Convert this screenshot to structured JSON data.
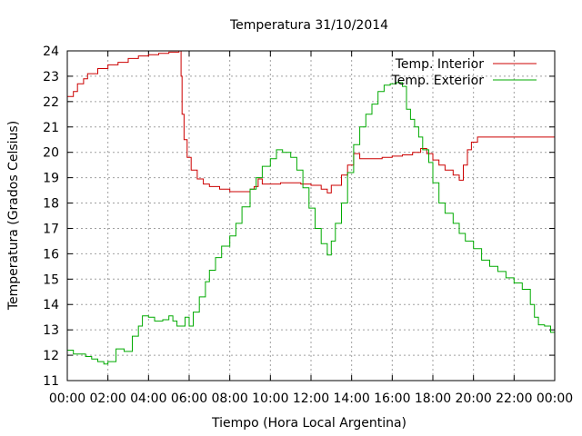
{
  "chart_data": {
    "type": "line",
    "title": "Temperatura 31/10/2014",
    "xlabel": "Tiempo (Hora Local Argentina)",
    "ylabel": "Temperatura (Grados Celsius)",
    "xlim": [
      0,
      24
    ],
    "ylim": [
      11,
      24
    ],
    "x_tick_labels": [
      "00:00",
      "02:00",
      "04:00",
      "06:00",
      "08:00",
      "10:00",
      "12:00",
      "14:00",
      "16:00",
      "18:00",
      "20:00",
      "22:00",
      "00:00"
    ],
    "y_tick_labels": [
      "11",
      "12",
      "13",
      "14",
      "15",
      "16",
      "17",
      "18",
      "19",
      "20",
      "21",
      "22",
      "23",
      "24"
    ],
    "grid": true,
    "legend_position": "top-right",
    "series": [
      {
        "name": "Temp. Interior",
        "color": "#cc0000",
        "points": [
          [
            0.0,
            22.2
          ],
          [
            0.3,
            22.4
          ],
          [
            0.5,
            22.7
          ],
          [
            0.8,
            22.9
          ],
          [
            1.0,
            23.1
          ],
          [
            1.5,
            23.3
          ],
          [
            2.0,
            23.45
          ],
          [
            2.5,
            23.55
          ],
          [
            3.0,
            23.7
          ],
          [
            3.5,
            23.8
          ],
          [
            4.0,
            23.85
          ],
          [
            4.5,
            23.9
          ],
          [
            5.0,
            23.95
          ],
          [
            5.5,
            24.0
          ],
          [
            5.6,
            23.0
          ],
          [
            5.65,
            21.5
          ],
          [
            5.75,
            20.5
          ],
          [
            5.9,
            19.8
          ],
          [
            6.1,
            19.3
          ],
          [
            6.4,
            18.95
          ],
          [
            6.7,
            18.75
          ],
          [
            7.0,
            18.65
          ],
          [
            7.5,
            18.55
          ],
          [
            8.0,
            18.45
          ],
          [
            8.5,
            18.45
          ],
          [
            9.0,
            18.55
          ],
          [
            9.2,
            18.65
          ],
          [
            9.4,
            18.95
          ],
          [
            9.6,
            18.75
          ],
          [
            10.0,
            18.75
          ],
          [
            10.5,
            18.8
          ],
          [
            11.0,
            18.8
          ],
          [
            11.5,
            18.75
          ],
          [
            12.0,
            18.7
          ],
          [
            12.5,
            18.55
          ],
          [
            12.8,
            18.4
          ],
          [
            13.0,
            18.7
          ],
          [
            13.5,
            19.1
          ],
          [
            13.8,
            19.5
          ],
          [
            14.1,
            19.95
          ],
          [
            14.4,
            19.75
          ],
          [
            15.0,
            19.75
          ],
          [
            15.5,
            19.8
          ],
          [
            16.0,
            19.85
          ],
          [
            16.5,
            19.9
          ],
          [
            17.0,
            20.0
          ],
          [
            17.4,
            20.15
          ],
          [
            17.7,
            19.95
          ],
          [
            18.0,
            19.7
          ],
          [
            18.3,
            19.5
          ],
          [
            18.6,
            19.3
          ],
          [
            19.0,
            19.1
          ],
          [
            19.3,
            18.9
          ],
          [
            19.5,
            19.5
          ],
          [
            19.7,
            20.1
          ],
          [
            19.9,
            20.4
          ],
          [
            20.2,
            20.6
          ],
          [
            21.0,
            20.6
          ],
          [
            22.0,
            20.6
          ],
          [
            23.0,
            20.6
          ],
          [
            24.0,
            20.6
          ]
        ]
      },
      {
        "name": "Temp. Exterior",
        "color": "#00aa00",
        "points": [
          [
            0.0,
            12.2
          ],
          [
            0.3,
            12.05
          ],
          [
            0.6,
            12.05
          ],
          [
            0.9,
            11.95
          ],
          [
            1.2,
            11.85
          ],
          [
            1.5,
            11.75
          ],
          [
            1.8,
            11.65
          ],
          [
            2.0,
            11.75
          ],
          [
            2.2,
            11.75
          ],
          [
            2.4,
            12.25
          ],
          [
            2.8,
            12.15
          ],
          [
            3.0,
            12.15
          ],
          [
            3.2,
            12.75
          ],
          [
            3.5,
            13.15
          ],
          [
            3.7,
            13.55
          ],
          [
            4.0,
            13.5
          ],
          [
            4.3,
            13.35
          ],
          [
            4.7,
            13.4
          ],
          [
            5.0,
            13.55
          ],
          [
            5.2,
            13.35
          ],
          [
            5.4,
            13.15
          ],
          [
            5.6,
            13.15
          ],
          [
            5.8,
            13.5
          ],
          [
            6.0,
            13.15
          ],
          [
            6.2,
            13.7
          ],
          [
            6.5,
            14.3
          ],
          [
            6.8,
            14.9
          ],
          [
            7.0,
            15.35
          ],
          [
            7.3,
            15.85
          ],
          [
            7.6,
            16.3
          ],
          [
            8.0,
            16.7
          ],
          [
            8.3,
            17.2
          ],
          [
            8.6,
            17.85
          ],
          [
            9.0,
            18.55
          ],
          [
            9.3,
            19.0
          ],
          [
            9.6,
            19.45
          ],
          [
            10.0,
            19.75
          ],
          [
            10.3,
            20.1
          ],
          [
            10.6,
            20.0
          ],
          [
            11.0,
            19.8
          ],
          [
            11.3,
            19.3
          ],
          [
            11.6,
            18.6
          ],
          [
            11.9,
            17.8
          ],
          [
            12.2,
            17.0
          ],
          [
            12.5,
            16.4
          ],
          [
            12.8,
            15.95
          ],
          [
            13.0,
            16.5
          ],
          [
            13.2,
            17.2
          ],
          [
            13.5,
            18.0
          ],
          [
            13.8,
            19.2
          ],
          [
            14.1,
            20.3
          ],
          [
            14.4,
            21.0
          ],
          [
            14.7,
            21.5
          ],
          [
            15.0,
            21.9
          ],
          [
            15.3,
            22.4
          ],
          [
            15.6,
            22.65
          ],
          [
            15.9,
            22.7
          ],
          [
            16.2,
            22.75
          ],
          [
            16.5,
            22.6
          ],
          [
            16.7,
            21.7
          ],
          [
            16.9,
            21.3
          ],
          [
            17.1,
            21.0
          ],
          [
            17.3,
            20.6
          ],
          [
            17.5,
            20.1
          ],
          [
            17.8,
            19.6
          ],
          [
            18.0,
            18.8
          ],
          [
            18.3,
            18.0
          ],
          [
            18.6,
            17.6
          ],
          [
            19.0,
            17.2
          ],
          [
            19.3,
            16.8
          ],
          [
            19.6,
            16.5
          ],
          [
            20.0,
            16.2
          ],
          [
            20.4,
            15.75
          ],
          [
            20.8,
            15.5
          ],
          [
            21.2,
            15.3
          ],
          [
            21.6,
            15.05
          ],
          [
            22.0,
            14.85
          ],
          [
            22.4,
            14.6
          ],
          [
            22.8,
            14.0
          ],
          [
            23.0,
            13.5
          ],
          [
            23.2,
            13.2
          ],
          [
            23.5,
            13.15
          ],
          [
            23.8,
            12.9
          ],
          [
            24.0,
            12.45
          ]
        ]
      }
    ]
  }
}
